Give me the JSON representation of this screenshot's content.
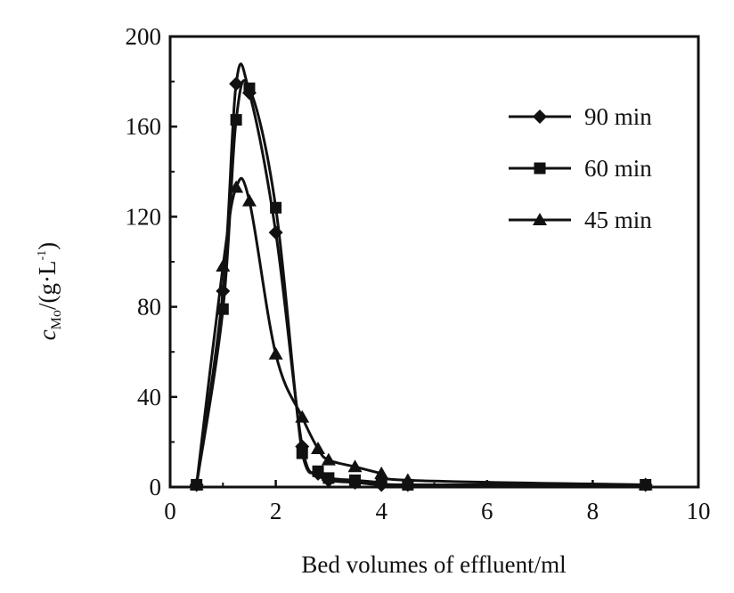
{
  "chart_data": {
    "type": "line",
    "xlabel": "Bed volumes of effluent/ml",
    "ylabel_main": "c",
    "ylabel_sub": "Mo",
    "ylabel_unit": "/(g·L",
    "ylabel_sup": "-1",
    "ylabel_close": ")",
    "xlim": [
      0,
      10
    ],
    "ylim": [
      0,
      200
    ],
    "xticks": [
      0,
      2,
      4,
      6,
      8,
      10
    ],
    "yticks": [
      0,
      40,
      80,
      120,
      160,
      200
    ],
    "grid": false,
    "legend_position": "top-right",
    "series": [
      {
        "name": "90 min",
        "marker": "diamond",
        "x": [
          0.5,
          1.0,
          1.25,
          1.5,
          2.0,
          2.5,
          2.8,
          3.0,
          3.5,
          4.0,
          4.5,
          9.0
        ],
        "y": [
          1,
          87,
          179,
          175,
          113,
          18,
          6,
          3,
          2,
          1,
          1,
          1
        ]
      },
      {
        "name": "60 min",
        "marker": "square",
        "x": [
          0.5,
          1.0,
          1.25,
          1.5,
          2.0,
          2.5,
          2.8,
          3.0,
          3.5,
          4.0,
          4.5,
          9.0
        ],
        "y": [
          1,
          79,
          163,
          177,
          124,
          15,
          7,
          4,
          3,
          2,
          1,
          1
        ]
      },
      {
        "name": "45 min",
        "marker": "triangle",
        "x": [
          0.5,
          1.0,
          1.25,
          1.5,
          2.0,
          2.5,
          2.8,
          3.0,
          3.5,
          4.0,
          4.5,
          9.0
        ],
        "y": [
          1,
          98,
          133,
          127,
          59,
          31,
          17,
          12,
          9,
          6,
          3,
          1
        ]
      }
    ]
  }
}
